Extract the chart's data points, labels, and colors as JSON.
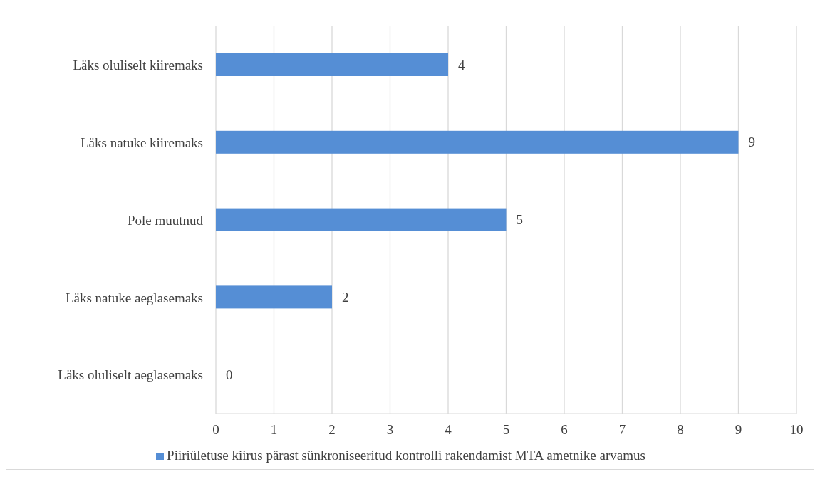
{
  "chart_data": {
    "type": "bar",
    "orientation": "horizontal",
    "categories": [
      "Läks oluliselt kiiremaks",
      "Läks natuke kiiremaks",
      "Pole muutnud",
      "Läks natuke aeglasemaks",
      "Läks oluliselt aeglasemaks"
    ],
    "series": [
      {
        "name": "Piiriületuse kiirus pärast sünkroniseeritud kontrolli rakendamist MTA ametnike arvamus",
        "color": "#558ed5",
        "values": [
          4,
          9,
          5,
          2,
          0
        ]
      }
    ],
    "xlim": [
      0,
      10
    ],
    "xticks": [
      0,
      1,
      2,
      3,
      4,
      5,
      6,
      7,
      8,
      9,
      10
    ],
    "grid": "x",
    "legend": "bottom",
    "data_labels": true
  }
}
